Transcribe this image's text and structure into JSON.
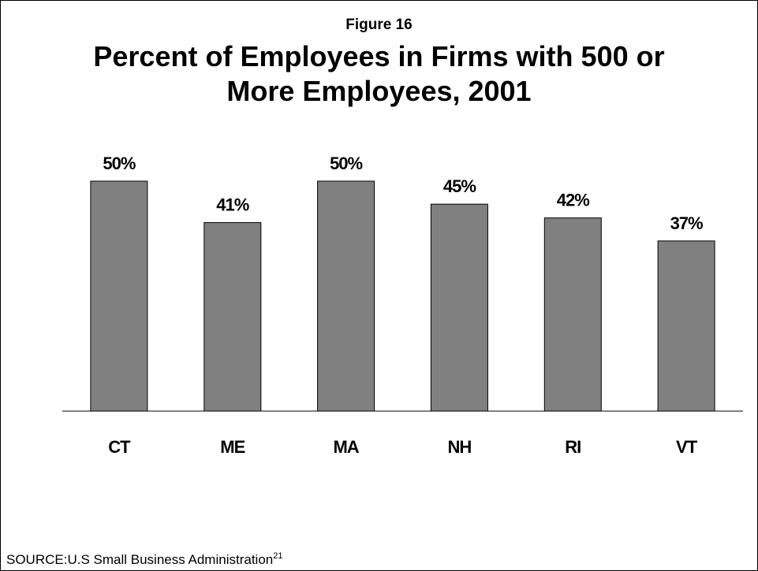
{
  "figure_label": "Figure 16",
  "title_lines": [
    "Percent of Employees in Firms with 500 or",
    "More Employees, 2001"
  ],
  "source": {
    "text": "SOURCE:U.S Small Business Administration",
    "footnote": "21"
  },
  "colors": {
    "bar": "#808080",
    "bar_stroke": "#000000",
    "axis": "#000000",
    "text": "#000000"
  },
  "chart_data": {
    "type": "bar",
    "title": "Percent of Employees in Firms with 500 or More Employees, 2001",
    "categories": [
      "CT",
      "ME",
      "MA",
      "NH",
      "RI",
      "VT"
    ],
    "values": [
      50,
      41,
      50,
      45,
      42,
      37
    ],
    "value_labels": [
      "50%",
      "41%",
      "50%",
      "45%",
      "42%",
      "37%"
    ],
    "ylim": [
      0,
      50
    ],
    "xlabel": "",
    "ylabel": "",
    "grid": false,
    "legend": "none"
  }
}
